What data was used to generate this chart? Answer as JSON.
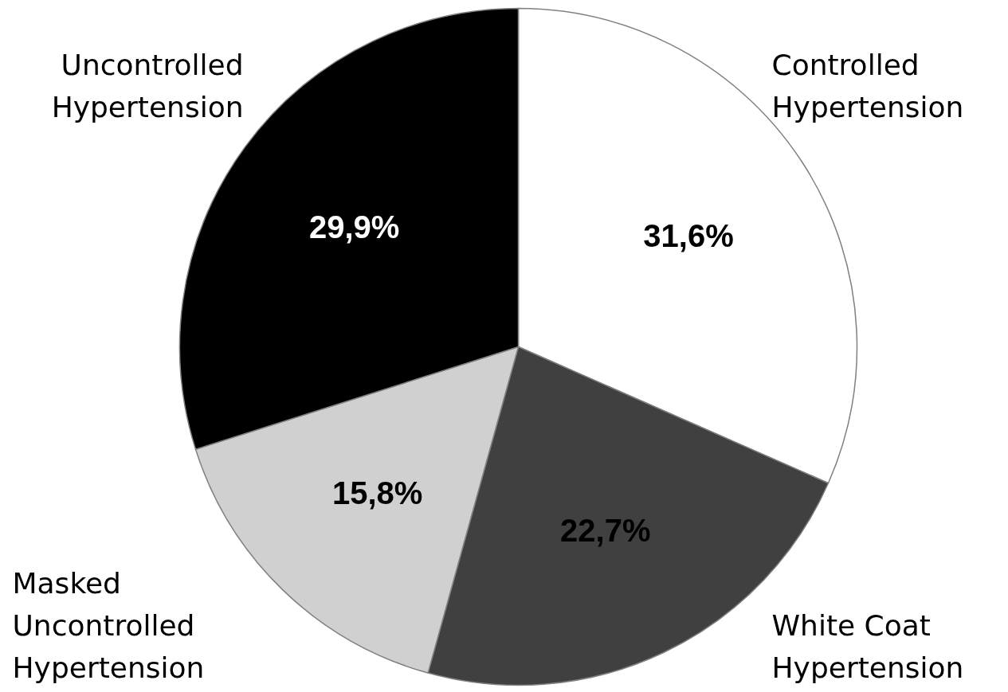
{
  "chart_data": {
    "type": "pie",
    "categories": [
      "Controlled\nHypertension",
      "White Coat\nHypertension",
      "Masked\nUncontrolled\nHypertension",
      "Uncontrolled\nHypertension"
    ],
    "values": [
      31.6,
      22.7,
      15.8,
      29.9
    ],
    "colors": [
      "#ffffff",
      "#404040",
      "#d0d0d0",
      "#000000"
    ],
    "value_labels": [
      "31,6%",
      "22,7%",
      "15,8%",
      "29,9%"
    ]
  }
}
